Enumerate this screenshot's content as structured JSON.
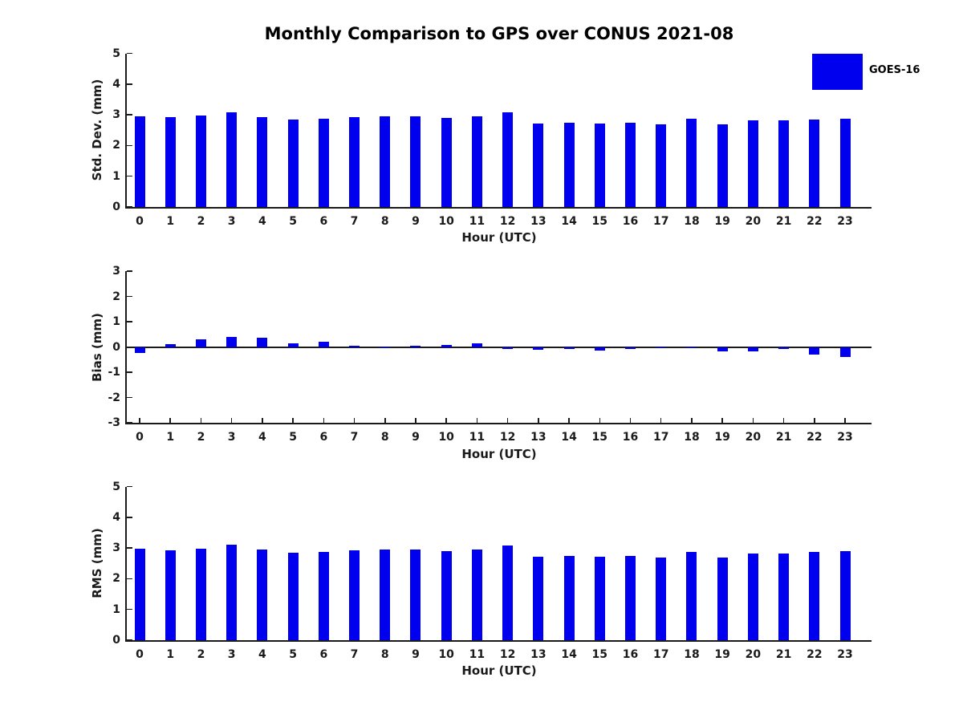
{
  "title": "Monthly Comparison to GPS over CONUS 2021-08",
  "legend": {
    "label": "GOES-16",
    "color": "#0000EE"
  },
  "colors": {
    "bar": "#0000EE",
    "axis": "#1a1a1a",
    "text": "#1a1a1a"
  },
  "chart_data": [
    {
      "type": "bar",
      "series_name": "GOES-16",
      "ylabel": "Std. Dev. (mm)",
      "xlabel": "Hour (UTC)",
      "ylim": [
        0,
        5
      ],
      "yticks": [
        0,
        1,
        2,
        3,
        4,
        5
      ],
      "grid": false,
      "categories": [
        "0",
        "1",
        "2",
        "3",
        "4",
        "5",
        "6",
        "7",
        "8",
        "9",
        "10",
        "11",
        "12",
        "13",
        "14",
        "15",
        "16",
        "17",
        "18",
        "19",
        "20",
        "21",
        "22",
        "23"
      ],
      "values": [
        2.96,
        2.93,
        2.97,
        3.07,
        2.92,
        2.84,
        2.86,
        2.92,
        2.96,
        2.95,
        2.89,
        2.95,
        3.07,
        2.71,
        2.73,
        2.72,
        2.75,
        2.69,
        2.86,
        2.69,
        2.82,
        2.82,
        2.85,
        2.86
      ]
    },
    {
      "type": "bar",
      "series_name": "GOES-16",
      "ylabel": "Bias (mm)",
      "xlabel": "Hour (UTC)",
      "ylim": [
        -3,
        3
      ],
      "yticks": [
        -3,
        -2,
        -1,
        0,
        1,
        2,
        3
      ],
      "grid": false,
      "categories": [
        "0",
        "1",
        "2",
        "3",
        "4",
        "5",
        "6",
        "7",
        "8",
        "9",
        "10",
        "11",
        "12",
        "13",
        "14",
        "15",
        "16",
        "17",
        "18",
        "19",
        "20",
        "21",
        "22",
        "23"
      ],
      "values": [
        -0.25,
        0.1,
        0.29,
        0.41,
        0.37,
        0.15,
        0.2,
        0.06,
        0.02,
        0.05,
        0.08,
        0.14,
        -0.07,
        -0.1,
        -0.08,
        -0.13,
        -0.07,
        -0.01,
        -0.05,
        -0.18,
        -0.18,
        -0.07,
        -0.3,
        -0.4
      ]
    },
    {
      "type": "bar",
      "series_name": "GOES-16",
      "ylabel": "RMS (mm)",
      "xlabel": "Hour (UTC)",
      "ylim": [
        0,
        5
      ],
      "yticks": [
        0,
        1,
        2,
        3,
        4,
        5
      ],
      "grid": false,
      "categories": [
        "0",
        "1",
        "2",
        "3",
        "4",
        "5",
        "6",
        "7",
        "8",
        "9",
        "10",
        "11",
        "12",
        "13",
        "14",
        "15",
        "16",
        "17",
        "18",
        "19",
        "20",
        "21",
        "22",
        "23"
      ],
      "values": [
        2.97,
        2.93,
        2.98,
        3.1,
        2.94,
        2.84,
        2.87,
        2.92,
        2.96,
        2.95,
        2.89,
        2.95,
        3.07,
        2.71,
        2.73,
        2.72,
        2.75,
        2.69,
        2.86,
        2.7,
        2.83,
        2.82,
        2.87,
        2.89
      ]
    }
  ]
}
